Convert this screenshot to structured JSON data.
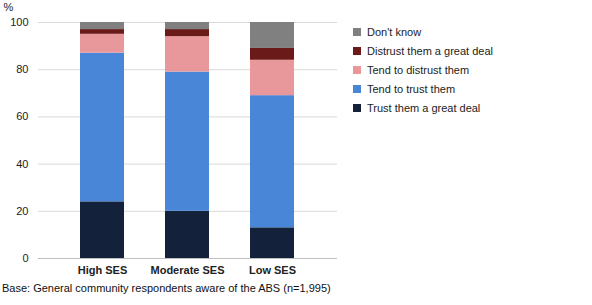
{
  "chart_data": {
    "type": "bar",
    "stacked": true,
    "legend": "right",
    "y_label": "%",
    "caption": "Base: General community respondents aware of the ABS (n=1,995)",
    "categories": [
      "High SES",
      "Moderate SES",
      "Low SES"
    ],
    "series": [
      {
        "name": "Trust them a great deal",
        "color": "#13213a",
        "values": [
          24,
          20,
          13
        ]
      },
      {
        "name": "Tend to trust them",
        "color": "#4a86d8",
        "values": [
          63,
          59,
          56
        ]
      },
      {
        "name": "Tend to distrust them",
        "color": "#e8989a",
        "values": [
          8,
          15,
          15
        ]
      },
      {
        "name": "Distrust them a great deal",
        "color": "#6b1a1a",
        "values": [
          2,
          3,
          5
        ]
      },
      {
        "name": "Don't know",
        "color": "#808080",
        "values": [
          3,
          3,
          11
        ]
      }
    ],
    "ylim": [
      0,
      100
    ],
    "yticks": [
      0,
      20,
      40,
      60,
      80,
      100
    ],
    "grid": true
  }
}
